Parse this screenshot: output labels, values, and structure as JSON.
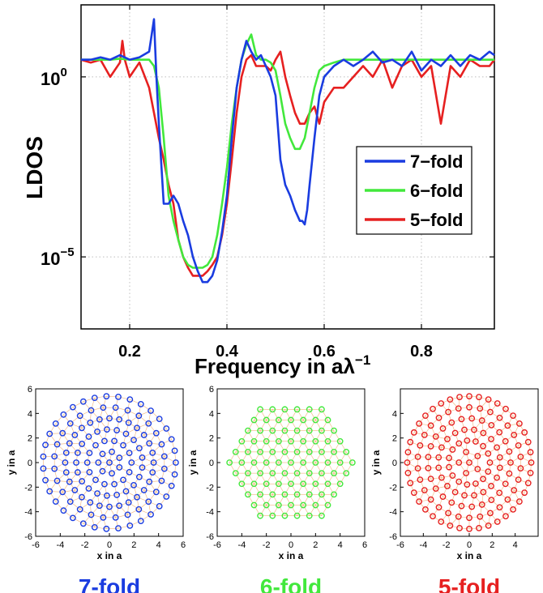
{
  "chart_data": [
    {
      "type": "line",
      "xlabel_text": "Frequency in a",
      "xlabel_sym": "λ",
      "xlabel_exp": "−1",
      "ylabel": "LDOS",
      "yscale": "log",
      "xlim": [
        0.1,
        0.95
      ],
      "ylim": [
        1e-07,
        100.0
      ],
      "x_ticks": [
        {
          "v": 0.2,
          "label": "0.2"
        },
        {
          "v": 0.4,
          "label": "0.4"
        },
        {
          "v": 0.6,
          "label": "0.6"
        },
        {
          "v": 0.8,
          "label": "0.8"
        }
      ],
      "y_ticks": [
        {
          "v": 1,
          "base": "10",
          "exp": "0"
        },
        {
          "v": 1e-05,
          "base": "10",
          "exp": "−5"
        }
      ],
      "grid": true,
      "legend_position": "right",
      "series": [
        {
          "name": "7−fold",
          "color": "#1a3ce0",
          "x": [
            0.1,
            0.12,
            0.14,
            0.16,
            0.18,
            0.2,
            0.22,
            0.24,
            0.25,
            0.255,
            0.26,
            0.27,
            0.28,
            0.29,
            0.3,
            0.31,
            0.32,
            0.33,
            0.34,
            0.35,
            0.36,
            0.37,
            0.38,
            0.39,
            0.4,
            0.41,
            0.42,
            0.43,
            0.44,
            0.45,
            0.46,
            0.47,
            0.48,
            0.49,
            0.5,
            0.51,
            0.52,
            0.53,
            0.54,
            0.55,
            0.555,
            0.56,
            0.565,
            0.57,
            0.58,
            0.59,
            0.6,
            0.62,
            0.64,
            0.66,
            0.68,
            0.7,
            0.72,
            0.74,
            0.76,
            0.78,
            0.8,
            0.82,
            0.84,
            0.86,
            0.88,
            0.9,
            0.92,
            0.94,
            0.95
          ],
          "y": [
            3,
            3,
            3.5,
            3,
            4,
            3,
            3.5,
            5,
            40,
            1,
            0.05,
            0.0003,
            0.0003,
            0.0005,
            0.0003,
            0.0001,
            4e-05,
            1e-05,
            4e-06,
            2e-06,
            2e-06,
            3e-06,
            8e-06,
            5e-05,
            0.0005,
            0.02,
            0.5,
            3,
            10,
            5,
            3,
            4,
            2,
            1,
            0.3,
            0.005,
            0.001,
            0.0005,
            0.0002,
            0.0001,
            0.0001,
            8e-05,
            0.0002,
            0.001,
            0.02,
            0.3,
            1,
            2,
            3,
            2,
            3,
            5,
            2.5,
            3,
            2,
            5,
            1.5,
            3,
            2,
            4,
            2,
            4,
            3,
            5,
            4
          ]
        },
        {
          "name": "6−fold",
          "color": "#42e83c",
          "x": [
            0.1,
            0.12,
            0.14,
            0.16,
            0.18,
            0.2,
            0.22,
            0.24,
            0.25,
            0.26,
            0.27,
            0.28,
            0.29,
            0.3,
            0.31,
            0.32,
            0.33,
            0.34,
            0.35,
            0.36,
            0.37,
            0.38,
            0.39,
            0.4,
            0.41,
            0.42,
            0.43,
            0.44,
            0.45,
            0.46,
            0.47,
            0.48,
            0.49,
            0.5,
            0.51,
            0.52,
            0.53,
            0.54,
            0.55,
            0.56,
            0.57,
            0.58,
            0.59,
            0.6,
            0.62,
            0.64,
            0.66,
            0.68,
            0.7,
            0.72,
            0.74,
            0.76,
            0.78,
            0.8,
            0.82,
            0.84,
            0.86,
            0.88,
            0.9,
            0.92,
            0.94,
            0.95
          ],
          "y": [
            3,
            3,
            3,
            3,
            3.2,
            3,
            3,
            3,
            2,
            0.5,
            0.02,
            0.0005,
            0.0001,
            3e-05,
            1e-05,
            6e-06,
            5e-06,
            5e-06,
            5e-06,
            6e-06,
            1e-05,
            4e-05,
            0.0003,
            0.003,
            0.05,
            0.5,
            3,
            8,
            15,
            4,
            3,
            3,
            2.5,
            1.5,
            0.3,
            0.05,
            0.02,
            0.01,
            0.01,
            0.02,
            0.1,
            0.5,
            1.5,
            2,
            2.5,
            3,
            3,
            3,
            3,
            3,
            3,
            3,
            3,
            3,
            3,
            3,
            3,
            3,
            3,
            3,
            3,
            3
          ]
        },
        {
          "name": "5−fold",
          "color": "#e62020",
          "x": [
            0.1,
            0.12,
            0.14,
            0.16,
            0.18,
            0.185,
            0.19,
            0.2,
            0.22,
            0.24,
            0.25,
            0.26,
            0.27,
            0.28,
            0.29,
            0.3,
            0.31,
            0.32,
            0.33,
            0.34,
            0.35,
            0.36,
            0.37,
            0.38,
            0.39,
            0.4,
            0.41,
            0.42,
            0.43,
            0.44,
            0.45,
            0.46,
            0.47,
            0.48,
            0.49,
            0.5,
            0.51,
            0.52,
            0.53,
            0.54,
            0.55,
            0.56,
            0.57,
            0.58,
            0.59,
            0.6,
            0.62,
            0.64,
            0.66,
            0.68,
            0.7,
            0.72,
            0.74,
            0.76,
            0.78,
            0.8,
            0.82,
            0.84,
            0.86,
            0.88,
            0.9,
            0.92,
            0.94,
            0.95
          ],
          "y": [
            3,
            2.5,
            3,
            1,
            2.5,
            10,
            3,
            1,
            2.5,
            0.5,
            0.1,
            0.02,
            0.005,
            0.001,
            0.0003,
            3e-05,
            1e-05,
            5e-06,
            3e-06,
            3e-06,
            3e-06,
            4e-06,
            6e-06,
            1e-05,
            4e-05,
            0.0003,
            0.005,
            0.1,
            1,
            3,
            4,
            2,
            2,
            2,
            1.5,
            3,
            5,
            1,
            0.3,
            0.1,
            0.05,
            0.05,
            0.1,
            0.15,
            0.05,
            0.2,
            0.5,
            0.5,
            1,
            2,
            1,
            3,
            0.5,
            2,
            3,
            1,
            2,
            0.05,
            2,
            1,
            3,
            2,
            2,
            3
          ]
        }
      ]
    },
    {
      "type": "scatter",
      "xlabel": "x in a",
      "ylabel": "y in a",
      "xlim": [
        -6,
        6
      ],
      "ylim": [
        -6,
        6
      ],
      "ticks": [
        -6,
        -4,
        -2,
        0,
        2,
        4,
        6
      ],
      "caption": "7-fold",
      "color": "#1a3ce0",
      "symmetry": 7,
      "radius_limit": 5.9,
      "point_spacing": 0.9
    },
    {
      "type": "scatter",
      "xlabel": "x in a",
      "ylabel": "y in a",
      "xlim": [
        -6,
        6
      ],
      "ylim": [
        -6,
        6
      ],
      "ticks": [
        -6,
        -4,
        -2,
        0,
        2,
        4,
        6
      ],
      "caption": "6-fold",
      "color": "#42e83c",
      "symmetry": 6,
      "radius_limit": 5.5,
      "point_spacing": 1.0
    },
    {
      "type": "scatter",
      "xlabel": "x in a",
      "ylabel": "y in a",
      "xlim": [
        -6,
        6
      ],
      "ylim": [
        -6,
        6
      ],
      "ticks": [
        -6,
        -4,
        -2,
        0,
        2,
        4
      ],
      "caption": "5-fold",
      "color": "#e62020",
      "symmetry": 5,
      "radius_limit": 5.9,
      "point_spacing": 0.9
    }
  ],
  "colors": {
    "bond": "#f0b47a",
    "axis": "#000000",
    "grid": "#bdbdbd"
  }
}
